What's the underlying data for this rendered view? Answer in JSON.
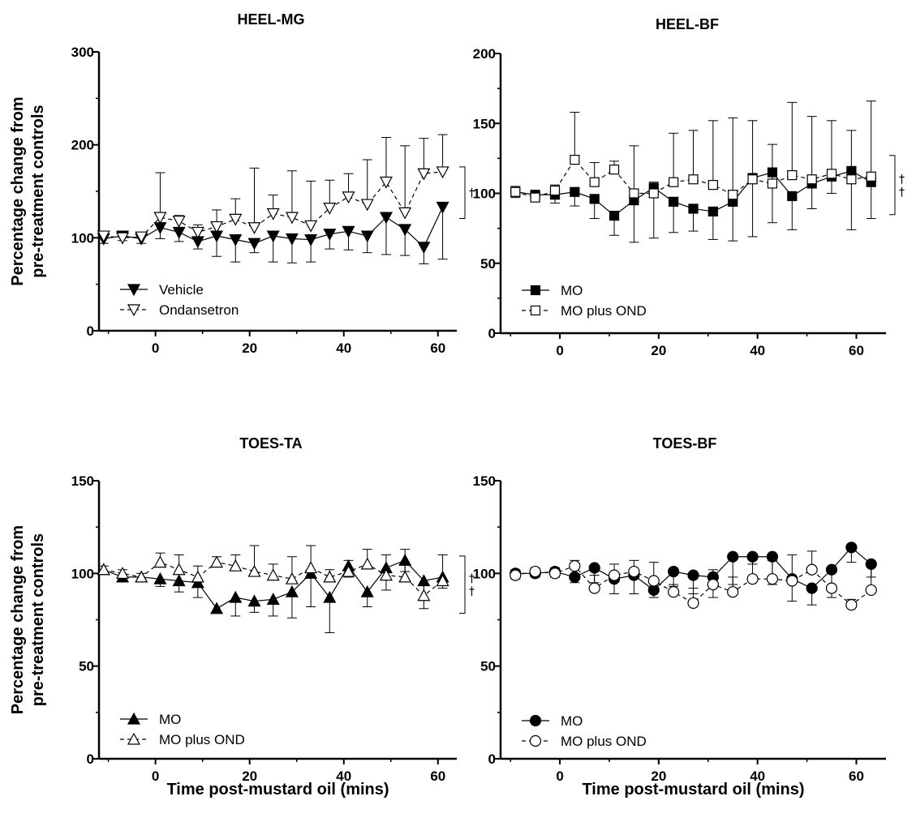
{
  "chart_data": [
    {
      "type": "line",
      "title": "HEEL-MG",
      "ylabel": "Percentage change from pre-treatment controls",
      "xlabel": "",
      "xlim": [
        -12,
        64
      ],
      "ylim": [
        0,
        300
      ],
      "xticks": [
        0,
        20,
        40,
        60
      ],
      "yticks": [
        0,
        100,
        200,
        300
      ],
      "legend": "bottom-left",
      "significance": [
        "†"
      ],
      "series": [
        {
          "name": "Vehicle",
          "marker": "triangle-down",
          "fill": "filled",
          "line": "solid",
          "x": [
            -11,
            -7,
            -3,
            1,
            5,
            9,
            13,
            17,
            21,
            25,
            29,
            33,
            37,
            41,
            45,
            49,
            53,
            57,
            61
          ],
          "y": [
            99,
            102,
            99,
            111,
            106,
            96,
            102,
            98,
            94,
            102,
            99,
            98,
            104,
            107,
            102,
            122,
            109,
            90,
            133
          ],
          "err": [
            5,
            5,
            5,
            12,
            10,
            8,
            22,
            24,
            10,
            28,
            26,
            24,
            16,
            20,
            18,
            40,
            28,
            18,
            56
          ]
        },
        {
          "name": "Ondansetron",
          "marker": "triangle-down",
          "fill": "open",
          "line": "dashed",
          "x": [
            -11,
            -7,
            -3,
            1,
            5,
            9,
            13,
            17,
            21,
            25,
            29,
            33,
            37,
            41,
            45,
            49,
            53,
            57,
            61
          ],
          "y": [
            102,
            100,
            101,
            122,
            118,
            106,
            112,
            120,
            111,
            126,
            122,
            113,
            132,
            144,
            136,
            160,
            127,
            169,
            171
          ],
          "err": [
            5,
            5,
            5,
            48,
            6,
            8,
            18,
            22,
            64,
            20,
            50,
            48,
            30,
            25,
            48,
            48,
            72,
            38,
            40
          ]
        }
      ]
    },
    {
      "type": "line",
      "title": "HEEL-BF",
      "ylabel": "",
      "xlabel": "",
      "xlim": [
        -12,
        66
      ],
      "ylim": [
        0,
        200
      ],
      "xticks": [
        0,
        20,
        40,
        60
      ],
      "yticks": [
        0,
        50,
        100,
        150,
        200
      ],
      "legend": "bottom-left",
      "significance": [
        "†",
        "†"
      ],
      "series": [
        {
          "name": "MO",
          "marker": "square",
          "fill": "filled",
          "line": "solid",
          "x": [
            -9,
            -5,
            -1,
            3,
            7,
            11,
            15,
            19,
            23,
            27,
            31,
            35,
            39,
            43,
            47,
            51,
            55,
            59,
            63
          ],
          "y": [
            101,
            99,
            99,
            101,
            96,
            84,
            95,
            104,
            94,
            89,
            87,
            94,
            111,
            115,
            98,
            107,
            112,
            116,
            108
          ],
          "err": [
            4,
            4,
            6,
            10,
            14,
            14,
            30,
            36,
            22,
            16,
            20,
            28,
            42,
            36,
            24,
            18,
            12,
            42,
            26
          ]
        },
        {
          "name": "MO plus OND",
          "marker": "square",
          "fill": "open",
          "line": "dashed",
          "x": [
            -9,
            -5,
            -1,
            3,
            7,
            11,
            15,
            19,
            23,
            27,
            31,
            35,
            39,
            43,
            47,
            51,
            55,
            59,
            63
          ],
          "y": [
            101,
            97,
            102,
            124,
            108,
            117,
            100,
            100,
            108,
            110,
            106,
            99,
            110,
            107,
            113,
            110,
            114,
            110,
            112
          ],
          "err": [
            4,
            4,
            4,
            34,
            14,
            6,
            34,
            8,
            35,
            35,
            46,
            55,
            42,
            28,
            52,
            45,
            38,
            35,
            54
          ]
        }
      ]
    },
    {
      "type": "line",
      "title": "TOES-TA",
      "ylabel": "Percentage change from pre-treatment controls",
      "xlabel": "Time post-mustard oil (mins)",
      "xlim": [
        -12,
        64
      ],
      "ylim": [
        0,
        150
      ],
      "xticks": [
        0,
        20,
        40,
        60
      ],
      "yticks": [
        0,
        50,
        100,
        150
      ],
      "legend": "bottom-left",
      "significance": [
        "†",
        "†"
      ],
      "series": [
        {
          "name": "MO",
          "marker": "triangle-up",
          "fill": "filled",
          "line": "solid",
          "x": [
            -11,
            -7,
            -3,
            1,
            5,
            9,
            13,
            17,
            21,
            25,
            29,
            33,
            37,
            41,
            45,
            49,
            53,
            57,
            61
          ],
          "y": [
            102,
            98,
            98,
            97,
            96,
            95,
            81,
            87,
            85,
            86,
            90,
            100,
            87,
            104,
            90,
            103,
            107,
            96,
            98
          ],
          "err": [
            2,
            2,
            2,
            4,
            6,
            8,
            2,
            10,
            6,
            9,
            14,
            18,
            19,
            6,
            8,
            12,
            6,
            15,
            6
          ]
        },
        {
          "name": "MO plus OND",
          "marker": "triangle-up",
          "fill": "open",
          "line": "dashed",
          "x": [
            -11,
            -7,
            -3,
            1,
            5,
            9,
            13,
            17,
            21,
            25,
            29,
            33,
            37,
            41,
            45,
            49,
            53,
            57,
            61
          ],
          "y": [
            102,
            100,
            98,
            106,
            102,
            98,
            106,
            104,
            101,
            99,
            97,
            103,
            98,
            101,
            105,
            99,
            98,
            88,
            96
          ],
          "err": [
            2,
            2,
            2,
            5,
            8,
            6,
            3,
            6,
            14,
            6,
            12,
            12,
            4,
            6,
            8,
            11,
            15,
            6,
            14
          ]
        }
      ]
    },
    {
      "type": "line",
      "title": "TOES-BF",
      "ylabel": "",
      "xlabel": "Time post-mustard oil (mins)",
      "xlim": [
        -12,
        66
      ],
      "ylim": [
        0,
        150
      ],
      "xticks": [
        0,
        20,
        40,
        60
      ],
      "yticks": [
        0,
        50,
        100,
        150
      ],
      "legend": "bottom-left",
      "significance": [],
      "series": [
        {
          "name": "MO",
          "marker": "circle",
          "fill": "filled",
          "line": "solid",
          "x": [
            -9,
            -5,
            -1,
            3,
            7,
            11,
            15,
            19,
            23,
            27,
            31,
            35,
            39,
            43,
            47,
            51,
            55,
            59,
            63
          ],
          "y": [
            100,
            100,
            101,
            98,
            103,
            97,
            99,
            91,
            101,
            99,
            98,
            109,
            109,
            109,
            97,
            92,
            102,
            114,
            105
          ],
          "err": [
            3,
            2,
            3,
            3,
            8,
            8,
            10,
            4,
            8,
            10,
            11,
            15,
            4,
            15,
            12,
            9,
            15,
            8,
            7
          ]
        },
        {
          "name": "MO plus OND",
          "marker": "circle",
          "fill": "open",
          "line": "dashed",
          "x": [
            -9,
            -5,
            -1,
            3,
            7,
            11,
            15,
            19,
            23,
            27,
            31,
            35,
            39,
            43,
            47,
            51,
            55,
            59,
            63
          ],
          "y": [
            99,
            101,
            100,
            104,
            92,
            99,
            101,
            96,
            90,
            84,
            94,
            90,
            97,
            97,
            96,
            102,
            92,
            83,
            91
          ],
          "err": [
            3,
            2,
            3,
            3,
            7,
            6,
            6,
            10,
            4,
            8,
            8,
            8,
            12,
            10,
            14,
            10,
            9,
            3,
            14
          ]
        }
      ]
    }
  ]
}
